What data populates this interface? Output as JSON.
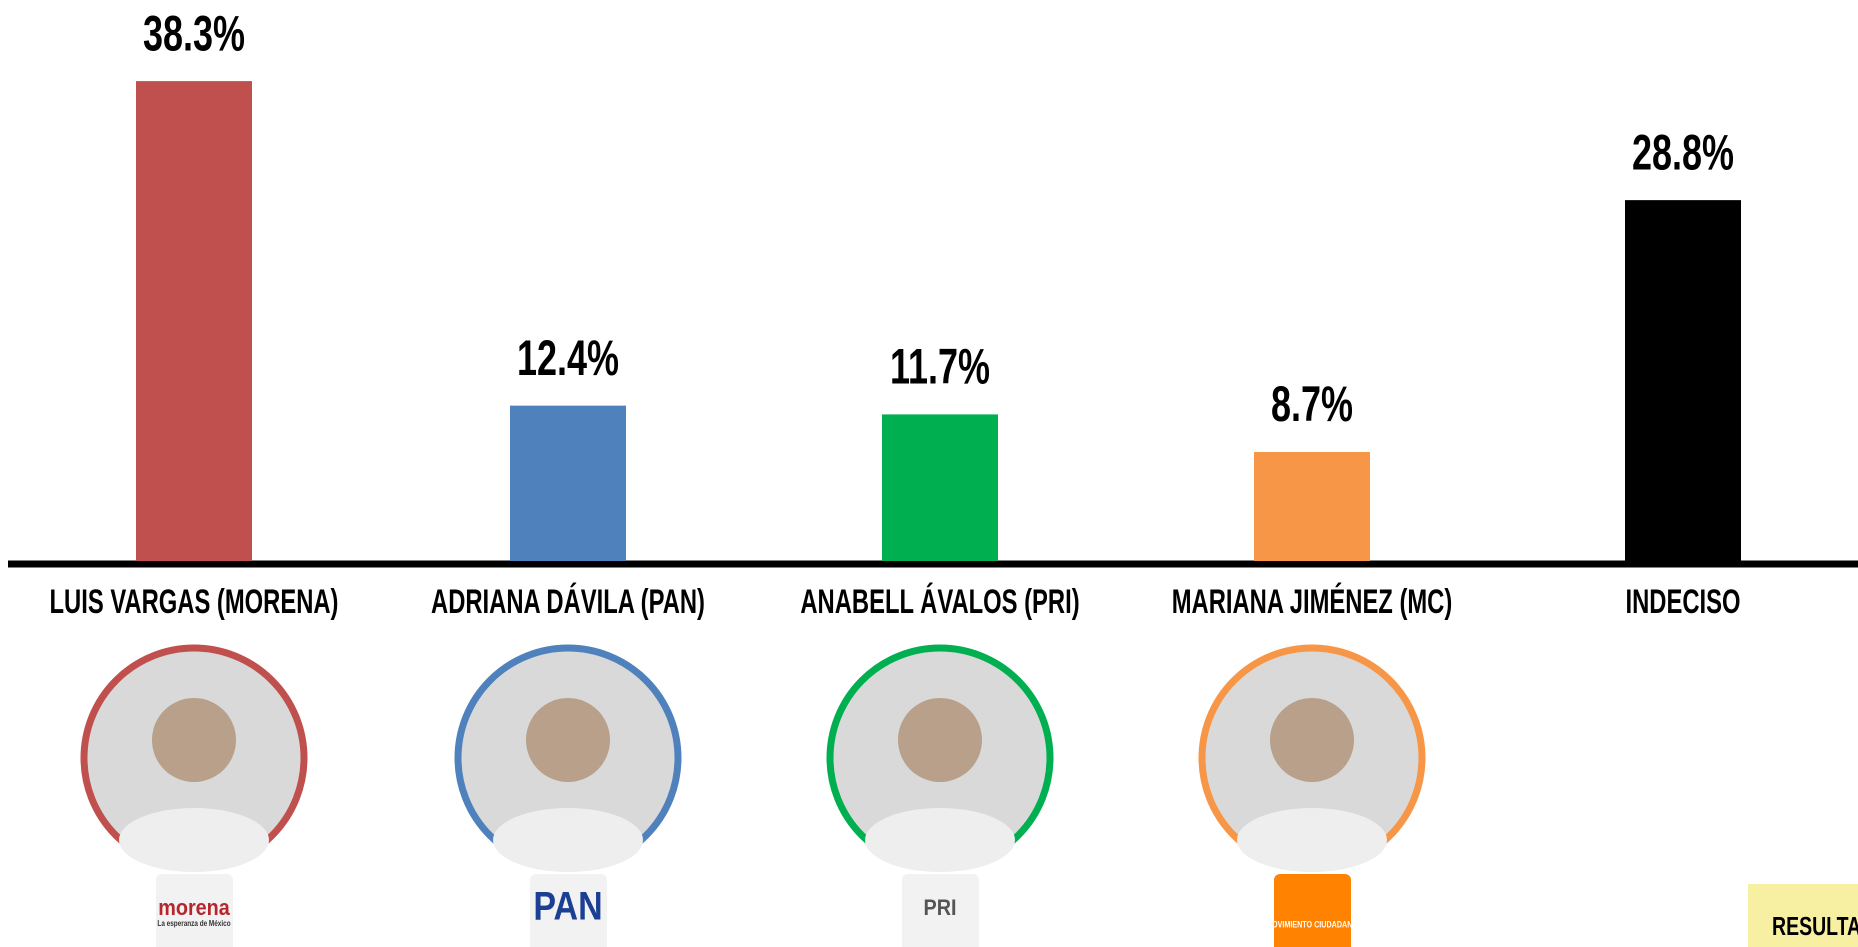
{
  "chart_data": {
    "type": "bar",
    "categories": [
      "LUIS VARGAS (MORENA)",
      "ADRIANA DÁVILA (PAN)",
      "ANABELL ÁVALOS (PRI)",
      "MARIANA JIMÉNEZ (MC)",
      "INDECISO"
    ],
    "values": [
      38.3,
      12.4,
      11.7,
      8.7,
      28.8
    ],
    "value_labels": [
      "38.3%",
      "12.4%",
      "11.7%",
      "8.7%",
      "28.8%"
    ],
    "colors": [
      "#c0504d",
      "#4f81bd",
      "#00b050",
      "#f79646",
      "#000000"
    ],
    "logos": [
      {
        "name": "morena",
        "tagline": "La esperanza de México",
        "color": "#b5272d"
      },
      {
        "name": "PAN",
        "color": "#1b3f93"
      },
      {
        "name": "PRI",
        "color": "#555555"
      },
      {
        "name": "MOVIMIENTO CIUDADANO",
        "color": "#ff8200"
      },
      null
    ],
    "badge": "RESULTA"
  }
}
